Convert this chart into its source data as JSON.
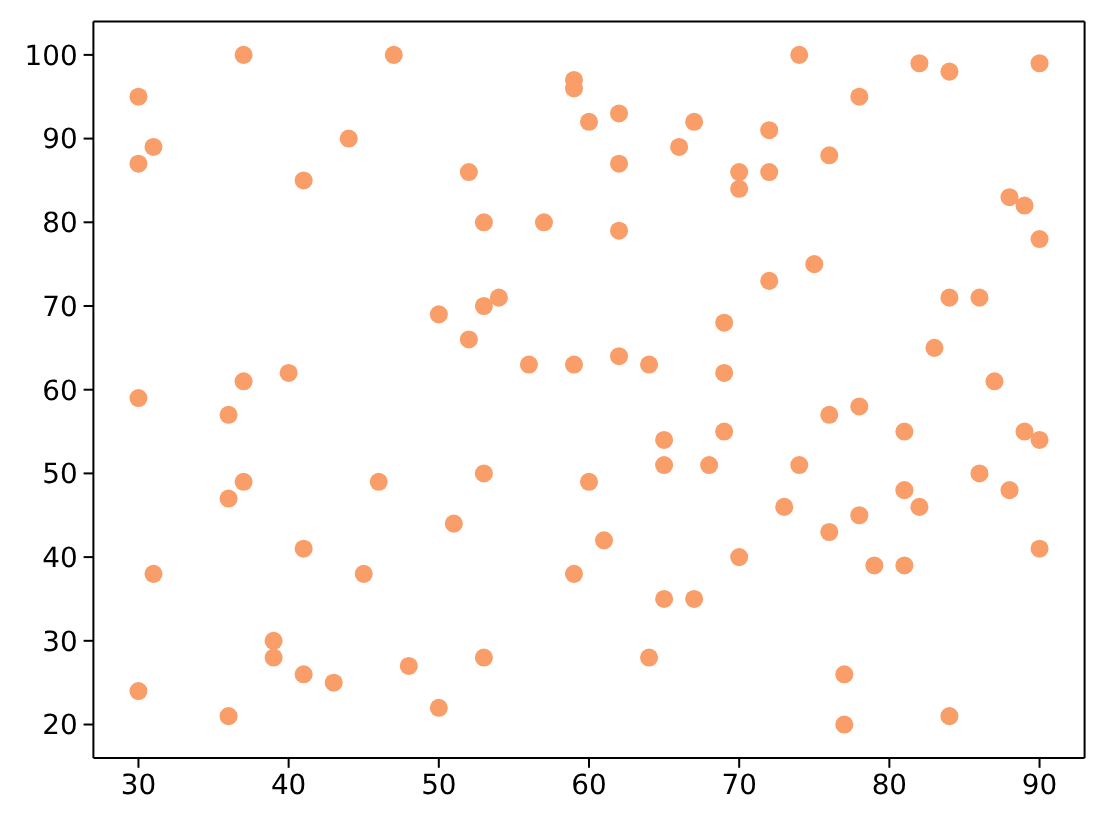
{
  "chart_data": {
    "type": "scatter",
    "x": [
      30,
      30,
      31,
      30,
      30,
      31,
      37,
      36,
      36,
      37,
      37,
      36,
      39,
      39,
      40,
      41,
      41,
      41,
      43,
      44,
      45,
      46,
      47,
      48,
      50,
      50,
      51,
      52,
      52,
      53,
      53,
      53,
      53,
      54,
      56,
      57,
      59,
      59,
      59,
      59,
      60,
      60,
      61,
      62,
      62,
      62,
      62,
      64,
      64,
      65,
      65,
      65,
      66,
      67,
      67,
      68,
      69,
      69,
      69,
      70,
      70,
      70,
      72,
      72,
      72,
      73,
      74,
      74,
      75,
      76,
      76,
      76,
      77,
      77,
      78,
      78,
      78,
      79,
      81,
      81,
      81,
      82,
      82,
      83,
      84,
      84,
      84,
      86,
      86,
      87,
      88,
      88,
      89,
      89,
      90,
      90,
      90,
      90
    ],
    "values": [
      95,
      87,
      89,
      59,
      24,
      38,
      100,
      57,
      47,
      49,
      61,
      21,
      30,
      28,
      62,
      85,
      41,
      26,
      25,
      90,
      38,
      49,
      100,
      27,
      69,
      22,
      44,
      86,
      66,
      80,
      70,
      50,
      28,
      71,
      63,
      80,
      97,
      96,
      63,
      38,
      92,
      49,
      42,
      93,
      87,
      79,
      64,
      63,
      28,
      54,
      51,
      35,
      89,
      92,
      35,
      51,
      68,
      62,
      55,
      86,
      84,
      40,
      91,
      86,
      73,
      46,
      100,
      51,
      75,
      88,
      57,
      43,
      26,
      20,
      95,
      58,
      45,
      39,
      55,
      48,
      39,
      99,
      46,
      65,
      98,
      71,
      21,
      71,
      50,
      61,
      83,
      48,
      82,
      55,
      99,
      78,
      54,
      41
    ],
    "color": "#f99d69",
    "marker": "circle",
    "xlim": [
      27,
      93
    ],
    "ylim": [
      16,
      104
    ],
    "xticks": [
      30,
      40,
      50,
      60,
      70,
      80,
      90
    ],
    "yticks": [
      20,
      30,
      40,
      50,
      60,
      70,
      80,
      90,
      100
    ]
  }
}
